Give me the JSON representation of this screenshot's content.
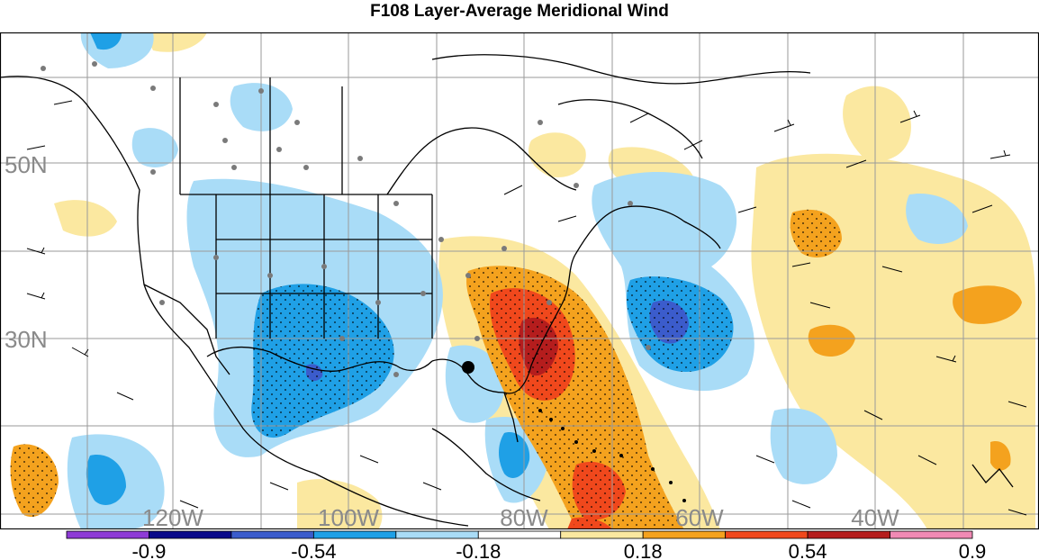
{
  "title": "F108 Layer-Average Meridional Wind",
  "map": {
    "longitude_labels": [
      "120W",
      "100W",
      "80W",
      "60W",
      "40W"
    ],
    "latitude_labels": [
      "50N",
      "30N"
    ]
  },
  "colorbar": {
    "colors": [
      "#8e3bd6",
      "#0a0a8a",
      "#3b5ccc",
      "#1fa0e6",
      "#a9dcf7",
      "#ffffff",
      "#fbe8a0",
      "#f4a21e",
      "#f0481c",
      "#b51d1d",
      "#f08ab4"
    ],
    "tick_labels": [
      "-0.9",
      "-0.54",
      "-0.18",
      "0.18",
      "0.54",
      "0.9"
    ],
    "tick_values": [
      -0.9,
      -0.54,
      -0.18,
      0.18,
      0.54,
      0.9
    ]
  },
  "colors": {
    "positive_strong": "#b51d1d",
    "positive_mid": "#f0481c",
    "positive_weak": "#f4a21e",
    "positive_faint": "#fbe8a0",
    "negative_faint": "#a9dcf7",
    "negative_weak": "#1fa0e6",
    "negative_mid": "#3b5ccc",
    "gridline": "#9a9a9a",
    "label_gray": "#8a8a8a"
  }
}
